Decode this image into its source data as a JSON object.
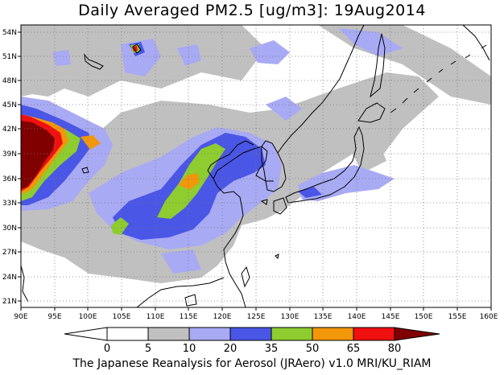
{
  "header": {
    "title": "Daily Averaged PM2.5 [ug/m3]: 19Aug2014"
  },
  "footer": {
    "credit": "The Japanese Reanalysis for Aerosol (JRAero) v1.0 MRI/KU_RIAM"
  },
  "map": {
    "lon_labels": [
      "90E",
      "95E",
      "100E",
      "105E",
      "110E",
      "115E",
      "120E",
      "125E",
      "130E",
      "135E",
      "140E",
      "145E",
      "150E",
      "155E",
      "160E"
    ],
    "lat_labels": [
      "54N",
      "51N",
      "48N",
      "45N",
      "42N",
      "39N",
      "36N",
      "33N",
      "30N",
      "27N",
      "24N",
      "21N"
    ]
  },
  "colorbar": {
    "levels": [
      "0",
      "5",
      "10",
      "20",
      "35",
      "50",
      "65",
      "80"
    ],
    "colors": [
      "#ffffff",
      "#c0c0c0",
      "#a8aaf4",
      "#4a56e6",
      "#8ecc30",
      "#f2960a",
      "#f01010",
      "#800000"
    ]
  }
}
